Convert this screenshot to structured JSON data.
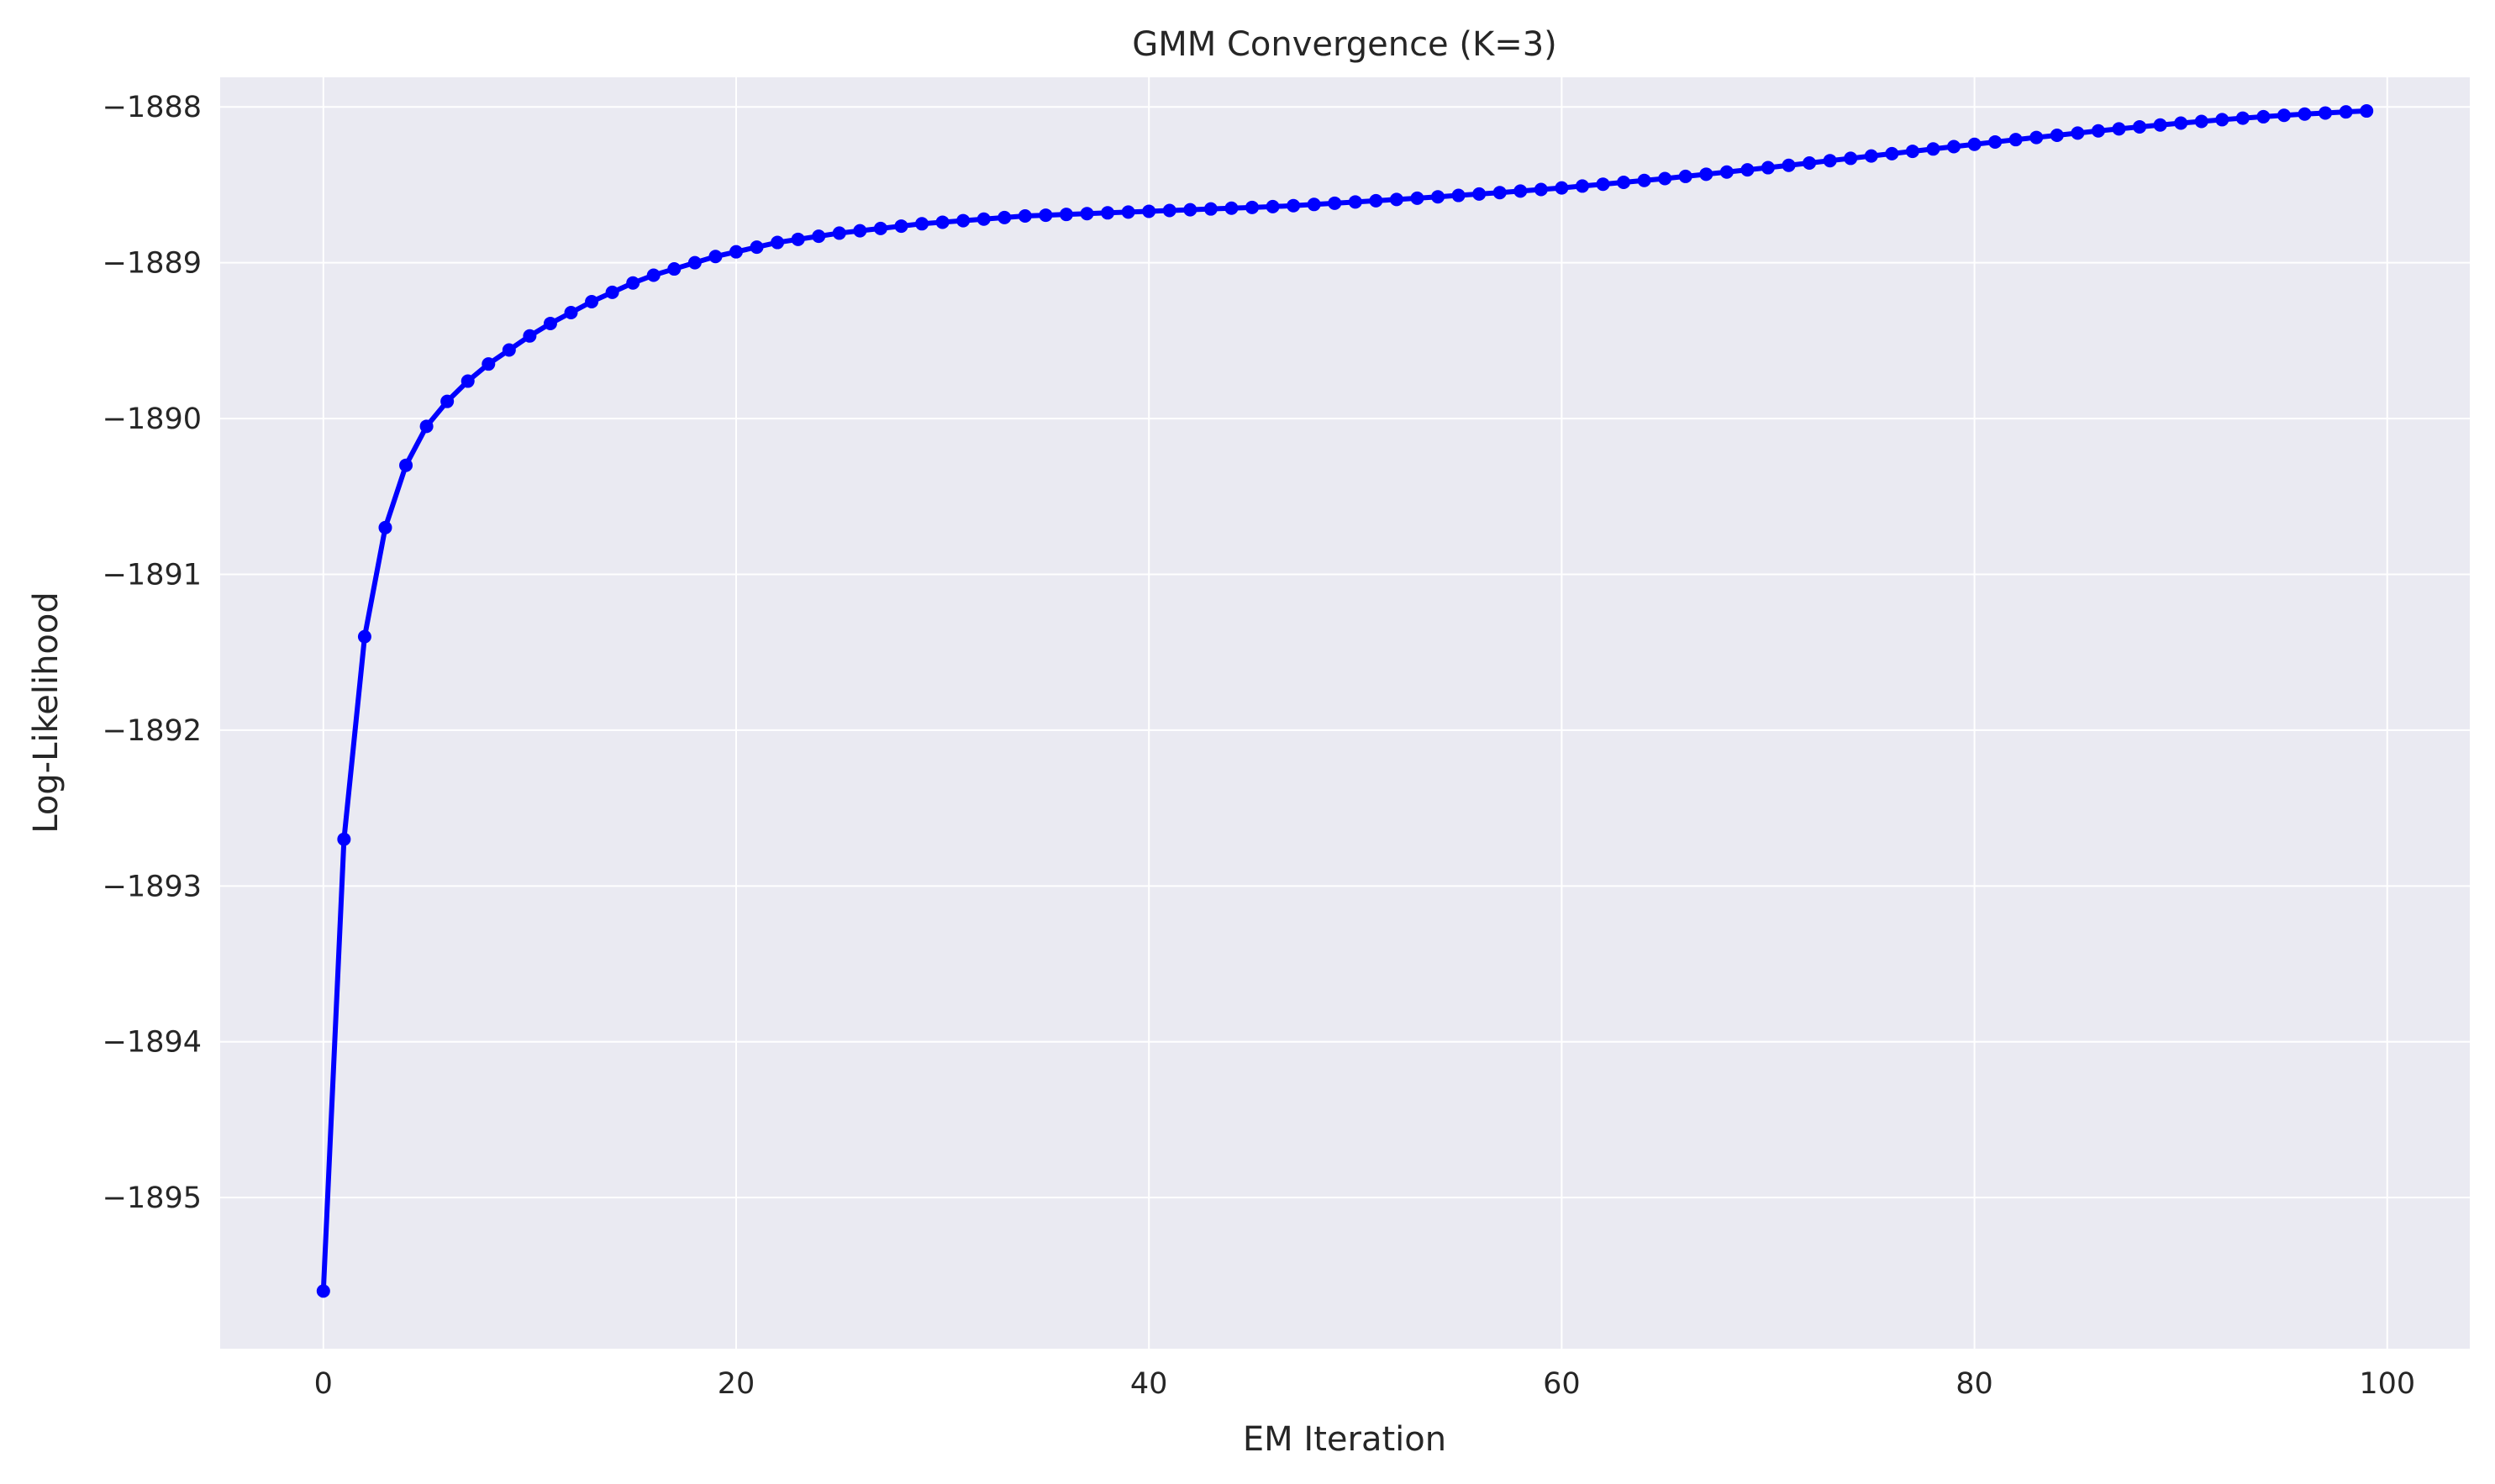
{
  "chart_data": {
    "type": "line",
    "title": "GMM Convergence (K=3)",
    "xlabel": "EM Iteration",
    "ylabel": "Log-Likelihood",
    "xlim": [
      -5,
      104
    ],
    "ylim": [
      -1895.97,
      -1887.81
    ],
    "xticks": [
      0,
      20,
      40,
      60,
      80,
      100
    ],
    "xtick_labels": [
      "0",
      "20",
      "40",
      "60",
      "80",
      "100"
    ],
    "yticks": [
      -1888,
      -1889,
      -1890,
      -1891,
      -1892,
      -1893,
      -1894,
      -1895
    ],
    "ytick_labels": [
      "−1888",
      "−1889",
      "−1890",
      "−1891",
      "−1892",
      "−1893",
      "−1894",
      "−1895"
    ],
    "grid": true,
    "background_color": "#eaeaf2",
    "grid_color": "#ffffff",
    "series": [
      {
        "color": "#0000ff",
        "marker": "circle",
        "x": [
          0,
          1,
          2,
          3,
          4,
          5,
          6,
          7,
          8,
          9,
          10,
          11,
          12,
          13,
          14,
          15,
          16,
          17,
          18,
          19,
          20,
          21,
          22,
          23,
          24,
          25,
          26,
          27,
          28,
          29,
          30,
          31,
          32,
          33,
          34,
          35,
          36,
          37,
          38,
          39,
          40,
          41,
          42,
          43,
          44,
          45,
          46,
          47,
          48,
          49,
          50,
          51,
          52,
          53,
          54,
          55,
          56,
          57,
          58,
          59,
          60,
          61,
          62,
          63,
          64,
          65,
          66,
          67,
          68,
          69,
          70,
          71,
          72,
          73,
          74,
          75,
          76,
          77,
          78,
          79,
          80,
          81,
          82,
          83,
          84,
          85,
          86,
          87,
          88,
          89,
          90,
          91,
          92,
          93,
          94,
          95,
          96,
          97,
          98,
          99
        ],
        "y": [
          -1895.6,
          -1892.7,
          -1891.4,
          -1890.7,
          -1890.3,
          -1890.05,
          -1889.89,
          -1889.76,
          -1889.65,
          -1889.56,
          -1889.47,
          -1889.39,
          -1889.32,
          -1889.25,
          -1889.19,
          -1889.13,
          -1889.08,
          -1889.04,
          -1889.0,
          -1888.96,
          -1888.93,
          -1888.9,
          -1888.87,
          -1888.85,
          -1888.83,
          -1888.81,
          -1888.795,
          -1888.78,
          -1888.765,
          -1888.75,
          -1888.74,
          -1888.73,
          -1888.72,
          -1888.71,
          -1888.7,
          -1888.695,
          -1888.69,
          -1888.685,
          -1888.68,
          -1888.675,
          -1888.67,
          -1888.665,
          -1888.66,
          -1888.655,
          -1888.65,
          -1888.645,
          -1888.64,
          -1888.634,
          -1888.626,
          -1888.618,
          -1888.61,
          -1888.602,
          -1888.594,
          -1888.586,
          -1888.577,
          -1888.568,
          -1888.559,
          -1888.55,
          -1888.54,
          -1888.53,
          -1888.52,
          -1888.508,
          -1888.496,
          -1888.484,
          -1888.472,
          -1888.46,
          -1888.446,
          -1888.432,
          -1888.418,
          -1888.404,
          -1888.39,
          -1888.375,
          -1888.36,
          -1888.345,
          -1888.33,
          -1888.315,
          -1888.3,
          -1888.285,
          -1888.27,
          -1888.255,
          -1888.24,
          -1888.225,
          -1888.21,
          -1888.196,
          -1888.182,
          -1888.168,
          -1888.154,
          -1888.141,
          -1888.128,
          -1888.116,
          -1888.104,
          -1888.093,
          -1888.082,
          -1888.072,
          -1888.063,
          -1888.054,
          -1888.046,
          -1888.039,
          -1888.032,
          -1888.026
        ]
      }
    ]
  }
}
